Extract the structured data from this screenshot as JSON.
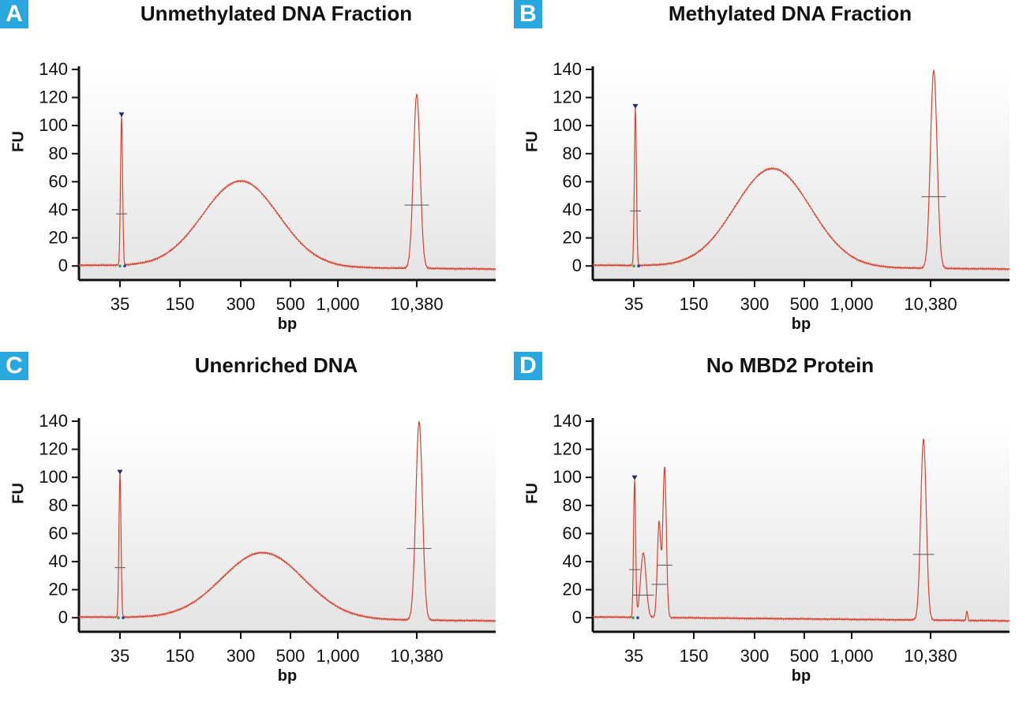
{
  "colors": {
    "badge": "#29a8e0",
    "trace": "#d9412e",
    "axis": "#111111",
    "marker": "#1e2a7a"
  },
  "chart_data": [
    {
      "id": "A",
      "type": "line",
      "title": "Unmethylated DNA Fraction",
      "xlabel": "bp",
      "ylabel": "FU",
      "x_tick_labels": [
        "35",
        "150",
        "300",
        "500",
        "1,000",
        "10,380"
      ],
      "y_ticks": [
        0,
        20,
        40,
        60,
        80,
        100,
        120,
        140
      ],
      "ylim": [
        -10,
        140
      ],
      "grid": false,
      "peaks": [
        {
          "label": "35",
          "height": 106,
          "marker": true
        },
        {
          "label": "~300 (broad)",
          "height": 61
        },
        {
          "label": "10,380",
          "height": 124
        }
      ]
    },
    {
      "id": "B",
      "type": "line",
      "title": "Methylated DNA Fraction",
      "xlabel": "bp",
      "ylabel": "FU",
      "x_tick_labels": [
        "35",
        "150",
        "300",
        "500",
        "1,000",
        "10,380"
      ],
      "y_ticks": [
        0,
        20,
        40,
        60,
        80,
        100,
        120,
        140
      ],
      "ylim": [
        -10,
        140
      ],
      "grid": false,
      "peaks": [
        {
          "label": "35",
          "height": 112,
          "marker": true
        },
        {
          "label": "~400-500 (broad)",
          "height": 70
        },
        {
          "label": "10,380",
          "height": 141
        }
      ]
    },
    {
      "id": "C",
      "type": "line",
      "title": "Unenriched DNA",
      "xlabel": "bp",
      "ylabel": "FU",
      "x_tick_labels": [
        "35",
        "150",
        "300",
        "500",
        "1,000",
        "10,380"
      ],
      "y_ticks": [
        0,
        20,
        40,
        60,
        80,
        100,
        120,
        140
      ],
      "ylim": [
        -10,
        140
      ],
      "grid": false,
      "peaks": [
        {
          "label": "35",
          "height": 102,
          "marker": true
        },
        {
          "label": "~400 (broad)",
          "height": 47
        },
        {
          "label": "10,380",
          "height": 141
        }
      ]
    },
    {
      "id": "D",
      "type": "line",
      "title": "No MBD2 Protein",
      "xlabel": "bp",
      "ylabel": "FU",
      "x_tick_labels": [
        "35",
        "150",
        "300",
        "500",
        "1,000",
        "10,380"
      ],
      "y_ticks": [
        0,
        20,
        40,
        60,
        80,
        100,
        120,
        140
      ],
      "ylim": [
        -10,
        140
      ],
      "grid": false,
      "peaks": [
        {
          "label": "35",
          "height": 98,
          "marker": true
        },
        {
          "label": "~50",
          "height": 46
        },
        {
          "label": "~90",
          "height": 68
        },
        {
          "label": "~110",
          "height": 107
        },
        {
          "label": "~9,000",
          "height": 129
        },
        {
          "label": "~17,000",
          "height": 7
        }
      ]
    }
  ]
}
